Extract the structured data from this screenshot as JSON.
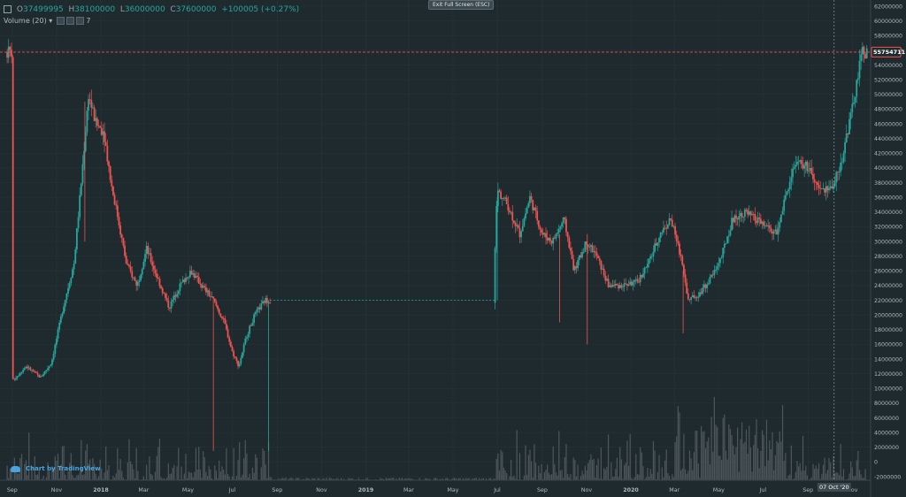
{
  "ohlc": {
    "open_label": "O",
    "open": "37499995",
    "high_label": "H",
    "high": "38100000",
    "low_label": "L",
    "low": "36000000",
    "close_label": "C",
    "close": "37600000",
    "change": "+100005 (+0.27%)"
  },
  "volume": {
    "label": "Volume (20)",
    "extra": "7"
  },
  "toolbar": {
    "exit_fullscreen": "Exit Full Screen (ESC)"
  },
  "branding": {
    "text": "Chart by TradingView"
  },
  "price_marker": {
    "value": "55754711",
    "color": "#ef5350"
  },
  "crosshair_date": "07 Oct '20",
  "colors": {
    "up": "#26a69a",
    "down": "#ef5350",
    "background": "#1f2a2f",
    "volume": "#5d666b",
    "grid": "#27343a"
  },
  "chart_data": {
    "type": "candlestick",
    "y_ticks": [
      "62000000",
      "60000000",
      "58000000",
      "56000000",
      "54000000",
      "52000000",
      "50000000",
      "48000000",
      "46000000",
      "44000000",
      "42000000",
      "40000000",
      "38000000",
      "36000000",
      "34000000",
      "32000000",
      "30000000",
      "28000000",
      "26000000",
      "24000000",
      "22000000",
      "20000000",
      "18000000",
      "16000000",
      "14000000",
      "12000000",
      "10000000",
      "8000000",
      "6000000",
      "4000000",
      "2000000",
      "0",
      "-2000000"
    ],
    "x_ticks": [
      "Sep",
      "Nov",
      "2018",
      "Mar",
      "May",
      "Jul",
      "Sep",
      "Nov",
      "2019",
      "Mar",
      "May",
      "Jul",
      "Sep",
      "Nov",
      "2020",
      "Mar",
      "May",
      "Jul",
      "Sep",
      "Nov"
    ],
    "ylim": [
      -2000000,
      62000000
    ],
    "price_path": [
      [
        "2017-09-01",
        11000000
      ],
      [
        "2017-09-20",
        13000000
      ],
      [
        "2017-10-10",
        11500000
      ],
      [
        "2017-10-25",
        13500000
      ],
      [
        "2017-11-10",
        21000000
      ],
      [
        "2017-11-25",
        27000000
      ],
      [
        "2017-12-05",
        38000000
      ],
      [
        "2017-12-15",
        50000000
      ],
      [
        "2017-12-25",
        46000000
      ],
      [
        "2018-01-05",
        45000000
      ],
      [
        "2018-01-15",
        38000000
      ],
      [
        "2018-01-25",
        33000000
      ],
      [
        "2018-02-05",
        27000000
      ],
      [
        "2018-02-20",
        24000000
      ],
      [
        "2018-03-05",
        29000000
      ],
      [
        "2018-03-20",
        25000000
      ],
      [
        "2018-04-05",
        21000000
      ],
      [
        "2018-04-20",
        24000000
      ],
      [
        "2018-05-05",
        26000000
      ],
      [
        "2018-05-20",
        24000000
      ],
      [
        "2018-06-05",
        22000000
      ],
      [
        "2018-06-20",
        19000000
      ],
      [
        "2018-07-01",
        15000000
      ],
      [
        "2018-07-10",
        13000000
      ],
      [
        "2018-07-20",
        17000000
      ],
      [
        "2018-08-01",
        20000000
      ],
      [
        "2018-08-15",
        22000000
      ],
      [
        "2018-09-01",
        22000000
      ],
      [
        "2019-06-25",
        22000000
      ],
      [
        "2019-07-01",
        37000000
      ],
      [
        "2019-07-15",
        35000000
      ],
      [
        "2019-08-01",
        31000000
      ],
      [
        "2019-08-15",
        36000000
      ],
      [
        "2019-09-01",
        31000000
      ],
      [
        "2019-09-15",
        30000000
      ],
      [
        "2019-10-01",
        33000000
      ],
      [
        "2019-10-15",
        26000000
      ],
      [
        "2019-11-01",
        30000000
      ],
      [
        "2019-11-15",
        28000000
      ],
      [
        "2019-12-01",
        24000000
      ],
      [
        "2019-12-20",
        24000000
      ],
      [
        "2020-01-10",
        24500000
      ],
      [
        "2020-01-25",
        27000000
      ],
      [
        "2020-02-10",
        31000000
      ],
      [
        "2020-02-25",
        33000000
      ],
      [
        "2020-03-10",
        28000000
      ],
      [
        "2020-03-20",
        22000000
      ],
      [
        "2020-04-05",
        23000000
      ],
      [
        "2020-04-20",
        25000000
      ],
      [
        "2020-05-05",
        28000000
      ],
      [
        "2020-05-20",
        33000000
      ],
      [
        "2020-06-05",
        34000000
      ],
      [
        "2020-06-20",
        33000000
      ],
      [
        "2020-07-05",
        32000000
      ],
      [
        "2020-07-20",
        31000000
      ],
      [
        "2020-08-01",
        36000000
      ],
      [
        "2020-08-15",
        41000000
      ],
      [
        "2020-09-01",
        40000000
      ],
      [
        "2020-09-15",
        37000000
      ],
      [
        "2020-10-01",
        37000000
      ],
      [
        "2020-10-15",
        40000000
      ],
      [
        "2020-11-01",
        48000000
      ],
      [
        "2020-11-15",
        56000000
      ],
      [
        "2020-11-20",
        55754711
      ]
    ]
  }
}
